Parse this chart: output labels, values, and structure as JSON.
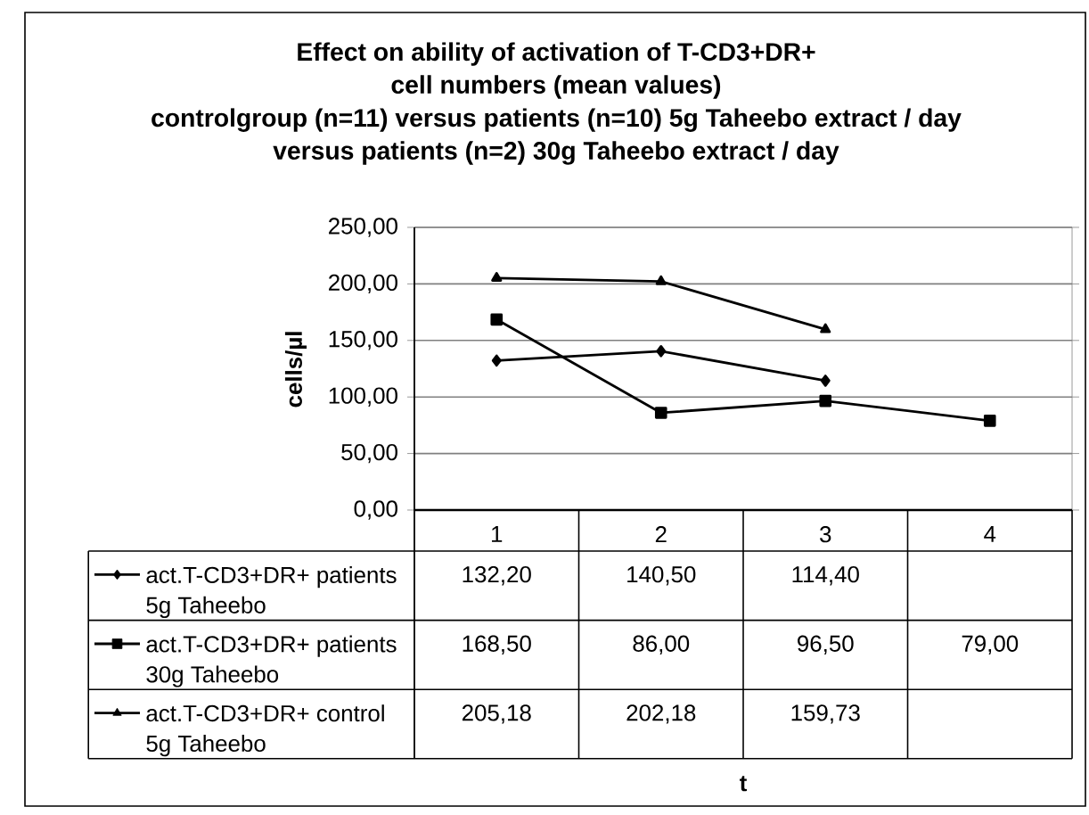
{
  "chart_data": {
    "type": "line",
    "title": "Effect on ability of activation of T-CD3+DR+ cell numbers (mean values)",
    "subtitle": "controlgroup (n=11) versus patients (n=10) 5g Taheebo extract / day versus patients (n=2) 30g Taheebo extract / day",
    "ylabel": "cells/µl",
    "annotations": [
      "t"
    ],
    "categories": [
      "1",
      "2",
      "3",
      "4"
    ],
    "series": [
      {
        "name": "act.T-CD3+DR+ patients 5g Taheebo",
        "color": "#000000",
        "marker": "diamond",
        "values": [
          132.2,
          140.5,
          114.4,
          null
        ],
        "value_labels": [
          "132,20",
          "140,50",
          "114,40",
          null
        ]
      },
      {
        "name": "act.T-CD3+DR+ patients 30g Taheebo",
        "color": "#000000",
        "marker": "square",
        "values": [
          168.5,
          86.0,
          96.5,
          79.0
        ],
        "value_labels": [
          "168,50",
          "86,00",
          "96,50",
          "79,00"
        ]
      },
      {
        "name": "act.T-CD3+DR+ control 5g Taheebo",
        "color": "#000000",
        "marker": "triangle",
        "values": [
          205.18,
          202.18,
          159.73,
          null
        ],
        "value_labels": [
          "205,18",
          "202,18",
          "159,73",
          null
        ]
      }
    ],
    "ylim": [
      0,
      250
    ],
    "yticks": [
      {
        "value": 0,
        "label": "0,00"
      },
      {
        "value": 50,
        "label": "50,00"
      },
      {
        "value": 100,
        "label": "100,00"
      },
      {
        "value": 150,
        "label": "150,00"
      },
      {
        "value": 200,
        "label": "200,00"
      },
      {
        "value": 250,
        "label": "250,00"
      }
    ],
    "grid": "y",
    "legend": "bottom"
  }
}
